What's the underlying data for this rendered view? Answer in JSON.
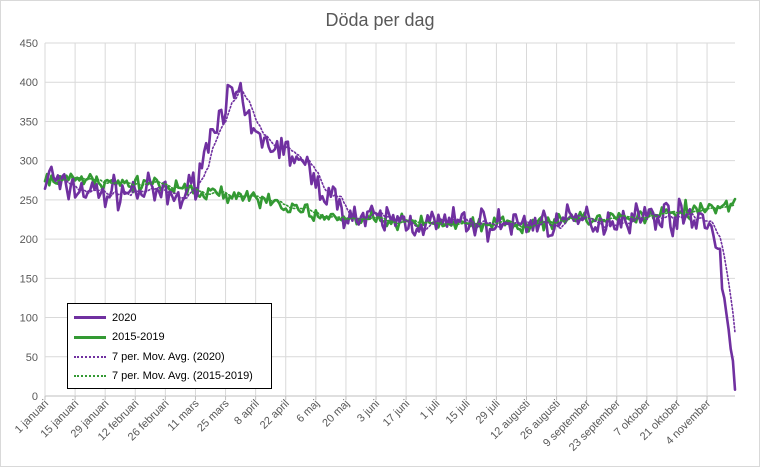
{
  "chart_data": {
    "type": "line",
    "title": "Döda per dag",
    "ylim": [
      0,
      450
    ],
    "yticks": [
      0,
      50,
      100,
      150,
      200,
      250,
      300,
      350,
      400,
      450
    ],
    "x_days": 322,
    "x_tick_every_days": 14,
    "xtick_labels": [
      "1 januari",
      "15 januari",
      "29 januari",
      "12 februari",
      "26 februari",
      "11 mars",
      "25 mars",
      "8 april",
      "22 april",
      "6 maj",
      "20 maj",
      "3 juni",
      "17 juni",
      "1 juli",
      "15 juli",
      "29 juli",
      "12 augusti",
      "26 augusti",
      "9 september",
      "23 september",
      "7 oktober",
      "21 oktober",
      "4 november"
    ],
    "series": [
      {
        "name": "2020",
        "color": "#7030a0",
        "style": "solid",
        "anchors": [
          [
            0,
            270
          ],
          [
            3,
            285
          ],
          [
            7,
            265
          ],
          [
            14,
            265
          ],
          [
            21,
            260
          ],
          [
            28,
            258
          ],
          [
            35,
            260
          ],
          [
            42,
            262
          ],
          [
            49,
            260
          ],
          [
            56,
            255
          ],
          [
            63,
            252
          ],
          [
            67,
            262
          ],
          [
            70,
            275
          ],
          [
            73,
            300
          ],
          [
            77,
            330
          ],
          [
            80,
            355
          ],
          [
            84,
            375
          ],
          [
            88,
            385
          ],
          [
            91,
            375
          ],
          [
            95,
            345
          ],
          [
            98,
            330
          ],
          [
            102,
            325
          ],
          [
            105,
            320
          ],
          [
            109,
            318
          ],
          [
            112,
            312
          ],
          [
            116,
            305
          ],
          [
            119,
            295
          ],
          [
            123,
            285
          ],
          [
            126,
            270
          ],
          [
            130,
            262
          ],
          [
            133,
            252
          ],
          [
            137,
            245
          ],
          [
            140,
            235
          ],
          [
            147,
            225
          ],
          [
            154,
            225
          ],
          [
            161,
            225
          ],
          [
            168,
            222
          ],
          [
            175,
            220
          ],
          [
            182,
            220
          ],
          [
            189,
            220
          ],
          [
            196,
            222
          ],
          [
            203,
            220
          ],
          [
            210,
            218
          ],
          [
            217,
            220
          ],
          [
            224,
            220
          ],
          [
            231,
            222
          ],
          [
            238,
            220
          ],
          [
            245,
            222
          ],
          [
            252,
            225
          ],
          [
            259,
            222
          ],
          [
            266,
            225
          ],
          [
            273,
            230
          ],
          [
            280,
            228
          ],
          [
            287,
            232
          ],
          [
            294,
            228
          ],
          [
            301,
            230
          ],
          [
            306,
            228
          ],
          [
            309,
            220
          ],
          [
            312,
            195
          ],
          [
            315,
            150
          ],
          [
            317,
            110
          ],
          [
            319,
            60
          ],
          [
            320,
            45
          ],
          [
            321,
            8
          ]
        ],
        "noise": 14,
        "seed": 7,
        "raw_endpoint_tail": 4
      },
      {
        "name": "2015-2019",
        "color": "#339933",
        "style": "solid",
        "anchors": [
          [
            0,
            282
          ],
          [
            14,
            276
          ],
          [
            28,
            272
          ],
          [
            42,
            270
          ],
          [
            56,
            268
          ],
          [
            70,
            262
          ],
          [
            84,
            258
          ],
          [
            98,
            252
          ],
          [
            105,
            248
          ],
          [
            112,
            242
          ],
          [
            126,
            232
          ],
          [
            140,
            228
          ],
          [
            154,
            226
          ],
          [
            168,
            222
          ],
          [
            182,
            221
          ],
          [
            196,
            220
          ],
          [
            210,
            220
          ],
          [
            224,
            220
          ],
          [
            238,
            224
          ],
          [
            252,
            226
          ],
          [
            266,
            228
          ],
          [
            280,
            232
          ],
          [
            294,
            236
          ],
          [
            308,
            240
          ],
          [
            321,
            244
          ]
        ],
        "noise": 7,
        "seed": 3,
        "raw_endpoint_tail": 0
      },
      {
        "name": "7 per. Mov. Avg. (2020)",
        "color": "#7030a0",
        "style": "dotted",
        "moving_average_of": "2020",
        "period": 7
      },
      {
        "name": "7 per. Mov. Avg. (2015-2019)",
        "color": "#339933",
        "style": "dotted",
        "moving_average_of": "2015-2019",
        "period": 7
      }
    ]
  }
}
